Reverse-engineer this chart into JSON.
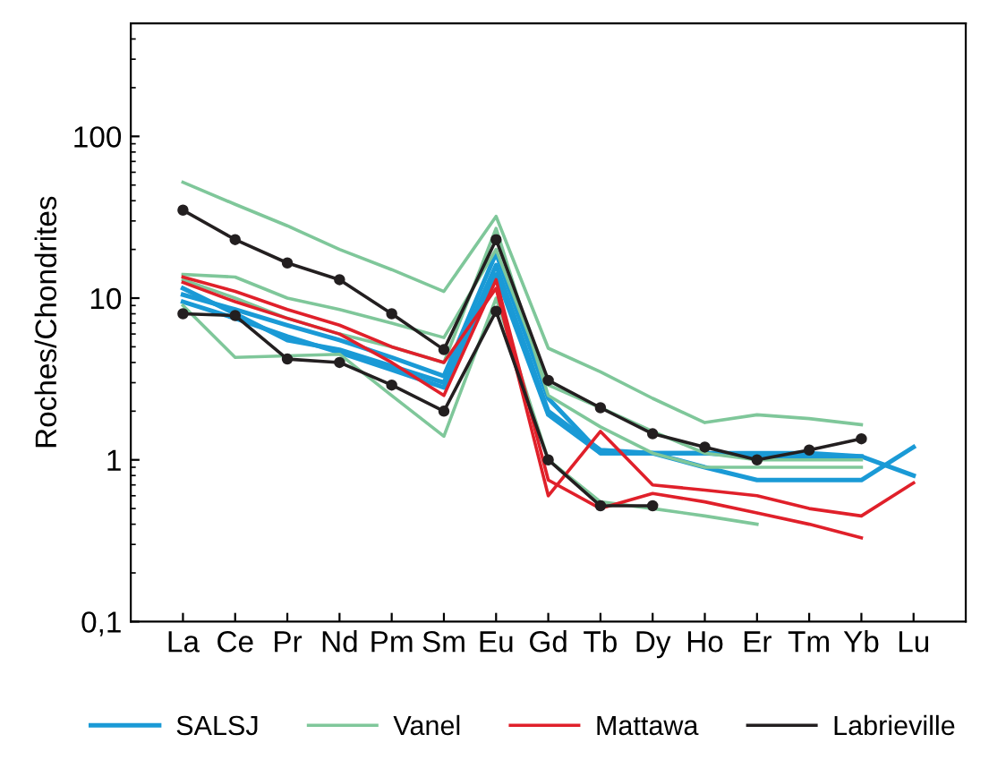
{
  "chart_data": {
    "type": "line",
    "ylabel": "Roches/Chondrites",
    "categories": [
      "La",
      "Ce",
      "Pr",
      "Nd",
      "Pm",
      "Sm",
      "Eu",
      "Gd",
      "Tb",
      "Dy",
      "Ho",
      "Er",
      "Tm",
      "Yb",
      "Lu"
    ],
    "log": "y",
    "ylim": [
      0.1,
      500
    ],
    "yticks": [
      {
        "value": 0.1,
        "label": "0,1"
      },
      1,
      10,
      100
    ],
    "grid": false,
    "legend": "bottom",
    "series": [
      {
        "name": "SALSJ",
        "color": "#1a9ad6",
        "values": [
          10.5,
          8.5,
          6.8,
          5.5,
          4.3,
          3.3,
          19,
          2.4,
          1.1,
          1.1,
          1.1,
          1.05,
          1.05,
          1.05,
          0.8
        ]
      },
      {
        "color": "#1a9ad6",
        "values": [
          9.5,
          7.5,
          5.8,
          4.6,
          3.6,
          2.8,
          14,
          1.9,
          1.1,
          1.1,
          0.9,
          0.75,
          0.75,
          0.75,
          1.2
        ]
      },
      {
        "color": "#1a9ad6",
        "values": [
          11.5,
          8,
          5.5,
          4.8,
          3.8,
          3.0,
          16,
          2.0,
          1.15,
          1.1,
          1.1,
          1.1,
          1.1,
          1.05,
          null
        ]
      },
      {
        "name": "Vanel",
        "color": "#7fc79a",
        "values": [
          52,
          38,
          28,
          20,
          15,
          11,
          32,
          4.9,
          3.5,
          2.4,
          1.7,
          1.9,
          1.8,
          1.65,
          null
        ]
      },
      {
        "color": "#7fc79a",
        "values": [
          14,
          13.5,
          10,
          8.5,
          7,
          5.7,
          20,
          2.9,
          2.1,
          1.5,
          1.1,
          1.0,
          1.0,
          1.0,
          null
        ]
      },
      {
        "color": "#7fc79a",
        "values": [
          9,
          4.3,
          4.4,
          4.5,
          2.5,
          1.4,
          10,
          1.0,
          0.55,
          0.5,
          0.45,
          0.4,
          null,
          null,
          null
        ]
      },
      {
        "color": "#7fc79a",
        "values": [
          13,
          10,
          7.5,
          6,
          5,
          4,
          27,
          2.5,
          1.6,
          1.1,
          0.9,
          0.9,
          0.9,
          0.9,
          null
        ]
      },
      {
        "name": "Mattawa",
        "color": "#e0202a",
        "values": [
          13.5,
          11,
          8.5,
          6.8,
          5,
          4,
          11.5,
          0.6,
          1.5,
          0.7,
          0.65,
          0.6,
          0.5,
          0.45,
          0.72
        ]
      },
      {
        "color": "#e0202a",
        "values": [
          12.5,
          9.5,
          7.5,
          6,
          4,
          2.5,
          13,
          0.75,
          0.5,
          0.62,
          0.55,
          0.47,
          0.4,
          0.33,
          null
        ]
      },
      {
        "name": "Labrieville",
        "color": "#231f20",
        "marker": "circle",
        "values": [
          35,
          23,
          16.5,
          13,
          8,
          4.8,
          23,
          3.1,
          2.1,
          1.45,
          1.2,
          1.0,
          1.15,
          1.35,
          null
        ]
      },
      {
        "color": "#231f20",
        "marker": "circle",
        "values": [
          8,
          7.8,
          4.2,
          4.0,
          2.9,
          2.0,
          8.3,
          1.0,
          0.52,
          0.52,
          null,
          null,
          null,
          null,
          null
        ]
      }
    ]
  }
}
